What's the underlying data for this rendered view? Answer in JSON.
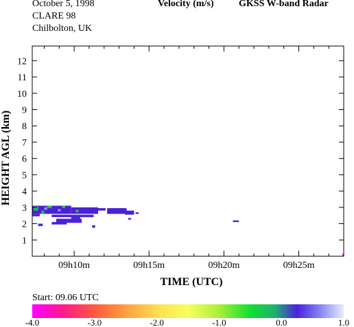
{
  "header": {
    "date": "October 5, 1998",
    "campaign": "CLARE 98",
    "location": "Chilbolton, UK",
    "quantity": "Velocity (m/s)",
    "instrument": "GKSS  W-band Radar"
  },
  "chart_data": {
    "type": "heatmap",
    "xlabel": "TIME (UTC)",
    "ylabel": "HEIGHT AGL (km)",
    "x_unit": "minutes after 09h00 UTC",
    "xlim": [
      7.2,
      28.0
    ],
    "ylim": [
      0,
      12.9
    ],
    "x_ticks": [
      {
        "value": 10,
        "label": "09h10m"
      },
      {
        "value": 15,
        "label": "09h15m"
      },
      {
        "value": 20,
        "label": "09h20m"
      },
      {
        "value": 25,
        "label": "09h25m"
      }
    ],
    "y_ticks": [
      1,
      2,
      3,
      4,
      5,
      6,
      7,
      8,
      9,
      10,
      11,
      12
    ],
    "start_label": "Start: 09.06 UTC",
    "colorbar": {
      "range": [
        -4.0,
        1.0
      ],
      "ticks": [
        "-4.0",
        "-3.0",
        "-2.0",
        "-1.0",
        "0.0",
        "1.0"
      ]
    },
    "regions": [
      {
        "t0": 7.2,
        "t1": 9.8,
        "h0": 2.6,
        "h1": 3.1,
        "velocity": 0.35
      },
      {
        "t0": 9.8,
        "t1": 11.6,
        "h0": 2.6,
        "h1": 3.0,
        "velocity": 0.3
      },
      {
        "t0": 11.6,
        "t1": 12.1,
        "h0": 2.8,
        "h1": 2.95,
        "velocity": 0.3
      },
      {
        "t0": 12.2,
        "t1": 13.5,
        "h0": 2.6,
        "h1": 2.95,
        "velocity": 0.35
      },
      {
        "t0": 13.4,
        "t1": 14.0,
        "h0": 2.55,
        "h1": 2.8,
        "velocity": 0.3
      },
      {
        "t0": 14.1,
        "t1": 14.3,
        "h0": 2.6,
        "h1": 2.7,
        "velocity": 0.3
      },
      {
        "t0": 7.2,
        "t1": 7.7,
        "h0": 2.45,
        "h1": 2.6,
        "velocity": 0.3
      },
      {
        "t0": 8.5,
        "t1": 11.3,
        "h0": 2.4,
        "h1": 2.55,
        "velocity": 0.3
      },
      {
        "t0": 9.8,
        "t1": 10.4,
        "h0": 2.3,
        "h1": 2.45,
        "velocity": 0.3
      },
      {
        "t0": 8.8,
        "t1": 10.5,
        "h0": 2.05,
        "h1": 2.3,
        "velocity": 0.3
      },
      {
        "t0": 8.5,
        "t1": 9.5,
        "h0": 1.95,
        "h1": 2.1,
        "velocity": 0.3
      },
      {
        "t0": 11.2,
        "t1": 11.4,
        "h0": 1.75,
        "h1": 1.9,
        "velocity": 0.3
      },
      {
        "t0": 7.6,
        "t1": 7.9,
        "h0": 1.85,
        "h1": 2.0,
        "velocity": 0.3
      },
      {
        "t0": 13.6,
        "t1": 13.8,
        "h0": 2.25,
        "h1": 2.35,
        "velocity": 0.3
      },
      {
        "t0": 20.6,
        "t1": 21.0,
        "h0": 2.1,
        "h1": 2.2,
        "velocity": 0.35
      },
      {
        "t0": 27.9,
        "t1": 28.0,
        "h0": 0.0,
        "h1": 0.15,
        "velocity": -3.6
      },
      {
        "t0": 7.3,
        "t1": 7.6,
        "h0": 2.8,
        "h1": 3.05,
        "velocity": -0.6
      },
      {
        "t0": 7.8,
        "t1": 8.0,
        "h0": 2.6,
        "h1": 2.8,
        "velocity": -0.6
      },
      {
        "t0": 8.2,
        "t1": 8.5,
        "h0": 2.95,
        "h1": 3.1,
        "velocity": -0.5
      },
      {
        "t0": 9.2,
        "t1": 9.4,
        "h0": 2.95,
        "h1": 3.1,
        "velocity": -0.5
      },
      {
        "t0": 10.1,
        "t1": 10.3,
        "h0": 2.7,
        "h1": 2.85,
        "velocity": -0.4
      },
      {
        "t0": 8.0,
        "t1": 8.2,
        "h0": 2.85,
        "h1": 3.0,
        "velocity": 0.9
      },
      {
        "t0": 8.9,
        "t1": 9.1,
        "h0": 2.75,
        "h1": 2.9,
        "velocity": 0.9
      }
    ]
  }
}
